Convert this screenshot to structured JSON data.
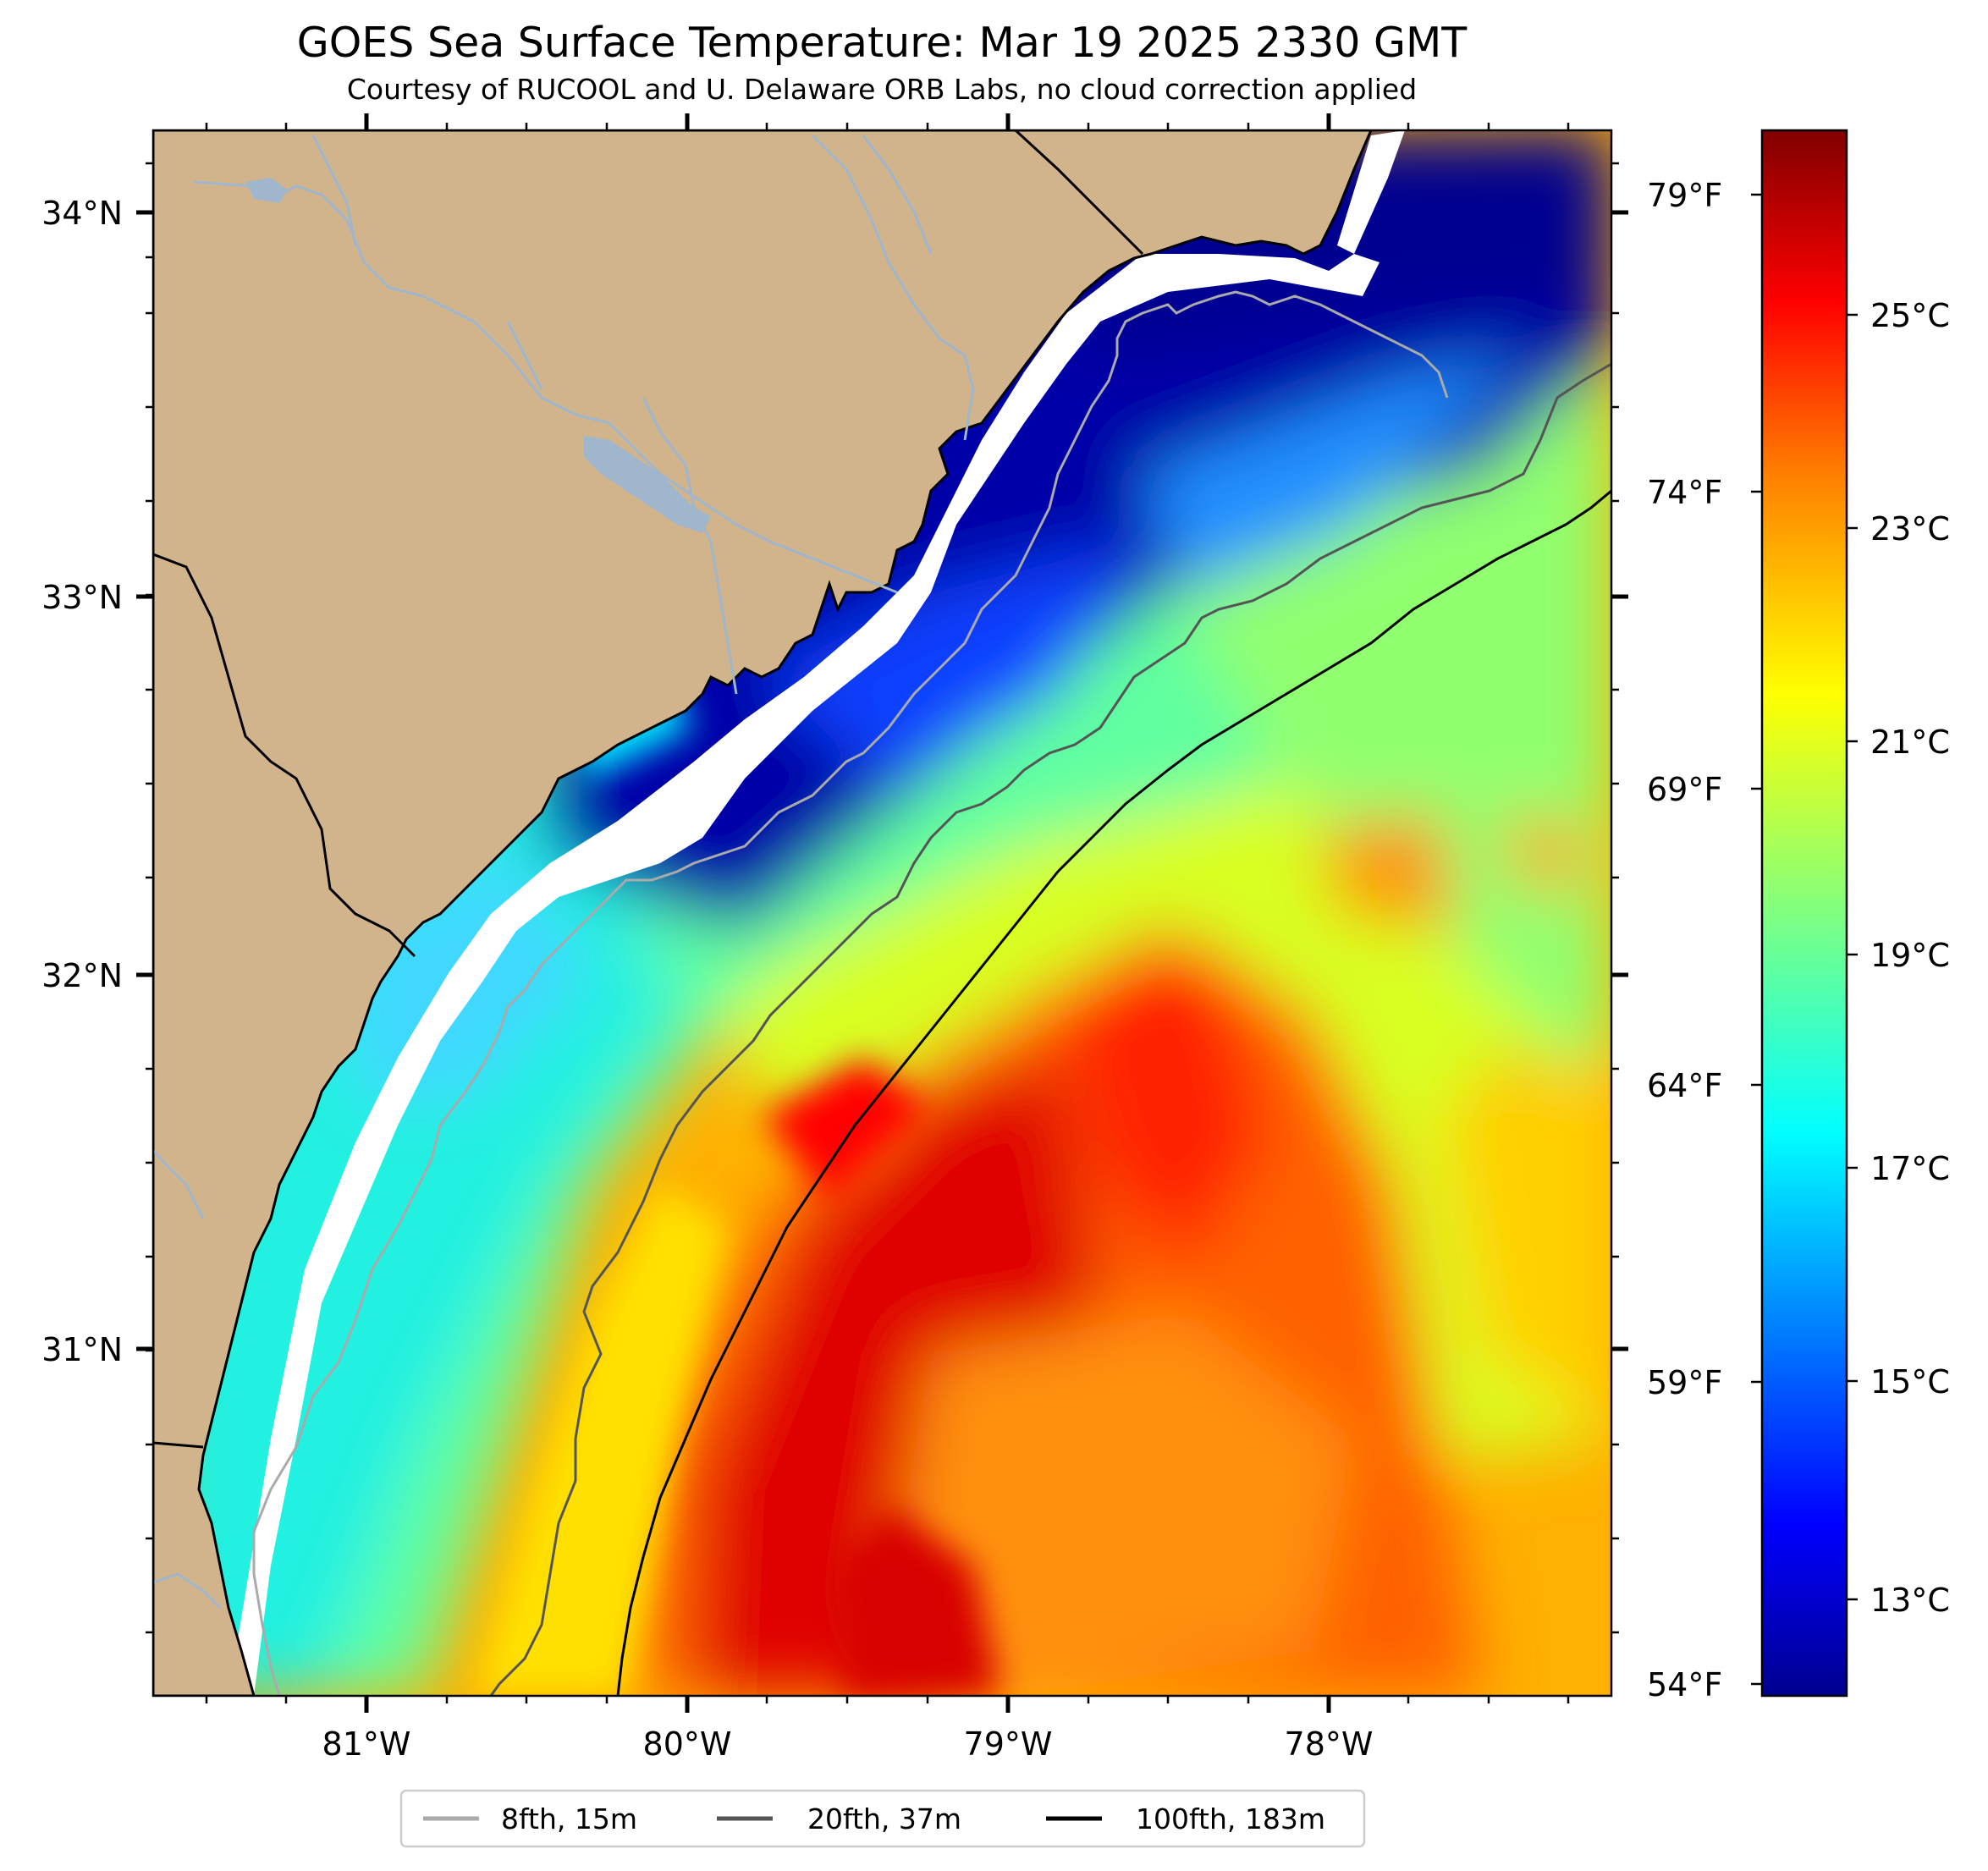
{
  "title": "GOES Sea Surface Temperature: Mar 19 2025 2330 GMT",
  "subtitle": "Courtesy of RUCOOL and U. Delaware ORB Labs, no cloud correction applied",
  "map": {
    "lat_labels": [
      "34°N",
      "33°N",
      "32°N",
      "31°N"
    ],
    "lon_labels": [
      "81°W",
      "80°W",
      "79°W",
      "78°W"
    ],
    "colors": {
      "land": "#d2b48c",
      "river": "#9fb6cd",
      "coast": "#000000"
    }
  },
  "colorbar": {
    "celsius_labels": [
      "25°C",
      "23°C",
      "21°C",
      "19°C",
      "17°C",
      "15°C",
      "13°C"
    ],
    "fahrenheit_labels": [
      "79°F",
      "74°F",
      "69°F",
      "64°F",
      "59°F",
      "54°F"
    ],
    "colormap": "jet",
    "colors": [
      "#00008f",
      "#0000ff",
      "#0080ff",
      "#00ffff",
      "#80ff80",
      "#ffff00",
      "#ff8000",
      "#ff0000",
      "#800000"
    ]
  },
  "legend": {
    "items": [
      {
        "label": "8fth, 15m",
        "color": "#aaaaaa"
      },
      {
        "label": "20fth, 37m",
        "color": "#555555"
      },
      {
        "label": "100fth, 183m",
        "color": "#000000"
      }
    ]
  }
}
